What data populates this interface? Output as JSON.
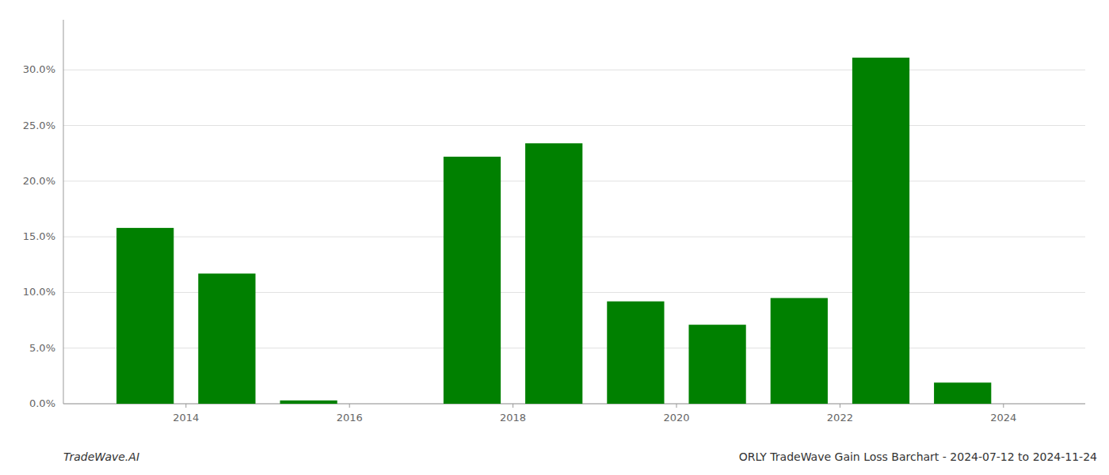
{
  "chart_data": {
    "type": "bar",
    "title": "ORLY TradeWave Gain Loss Barchart - 2024-07-12 to 2024-11-24",
    "annotations": [
      "TradeWave.AI"
    ],
    "x": [
      2013.5,
      2014.5,
      2015.5,
      2016.5,
      2017.5,
      2018.5,
      2019.5,
      2020.5,
      2021.5,
      2022.5,
      2023.5
    ],
    "values": [
      0.158,
      0.117,
      0.003,
      0.0,
      0.222,
      0.234,
      0.092,
      0.071,
      0.095,
      0.311,
      0.019
    ],
    "color": "#008000",
    "xlim": [
      2012.5,
      2025.0
    ],
    "xticks": [
      2014,
      2016,
      2018,
      2020,
      2022,
      2024
    ],
    "ylim": [
      0.0,
      0.345
    ],
    "yticks": [
      {
        "value": 0.0,
        "label": "0.0%"
      },
      {
        "value": 0.05,
        "label": "5.0%"
      },
      {
        "value": 0.1,
        "label": "10.0%"
      },
      {
        "value": 0.15,
        "label": "15.0%"
      },
      {
        "value": 0.2,
        "label": "20.0%"
      },
      {
        "value": 0.25,
        "label": "25.0%"
      },
      {
        "value": 0.3,
        "label": "30.0%"
      }
    ],
    "grid": true
  }
}
